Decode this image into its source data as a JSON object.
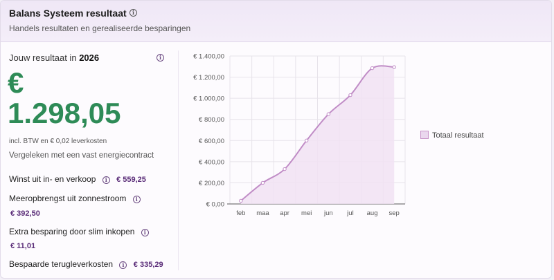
{
  "header": {
    "title": "Balans Systeem resultaat",
    "subtitle": "Handels resultaten en gerealiseerde besparingen"
  },
  "summary": {
    "year_prefix": "Jouw resultaat in",
    "year": "2026",
    "currency_symbol": "€",
    "total_amount": "1.298,05",
    "incl_note": "incl. BTW en € 0,02 leverkosten",
    "compare_note": "Vergeleken met een vast energiecontract",
    "rows": [
      {
        "label": "Winst uit in- en verkoop",
        "value": "€ 559,25"
      },
      {
        "label": "Meeropbrengst uit zonnestroom",
        "value": "€ 392,50"
      },
      {
        "label": "Extra besparing door slim inkopen",
        "value": "€ 11,01"
      },
      {
        "label": "Bespaarde terugleverkosten",
        "value": "€ 335,29"
      }
    ]
  },
  "icons": {
    "info": "info-icon"
  },
  "colors": {
    "amount_green": "#2e8b57",
    "value_purple": "#5a2c78",
    "line": "#c08cc6",
    "fill": "#f1e2f3"
  },
  "chart_data": {
    "type": "area",
    "categories": [
      "feb",
      "maa",
      "apr",
      "mei",
      "jun",
      "jul",
      "aug",
      "sep"
    ],
    "series": [
      {
        "name": "Totaal resultaat",
        "values": [
          30,
          200,
          330,
          600,
          850,
          1030,
          1285,
          1295
        ]
      }
    ],
    "ylim": [
      0,
      1400
    ],
    "yticks": [
      0,
      200,
      400,
      600,
      800,
      1000,
      1200,
      1400
    ],
    "ytick_labels": [
      "€ 0,00",
      "€ 200,00",
      "€ 400,00",
      "€ 600,00",
      "€ 800,00",
      "€ 1.000,00",
      "€ 1.200,00",
      "€ 1.400,00"
    ],
    "grid": true,
    "legend_position": "right"
  }
}
